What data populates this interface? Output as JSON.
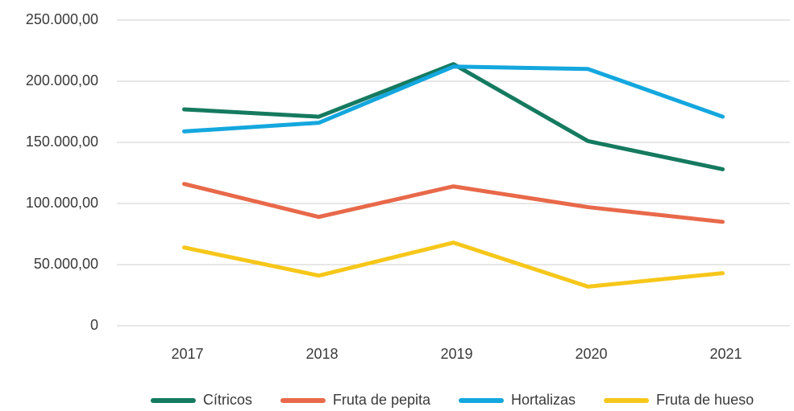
{
  "chart_data": {
    "type": "line",
    "categories": [
      "2017",
      "2018",
      "2019",
      "2020",
      "2021"
    ],
    "series": [
      {
        "name": "Cítricos",
        "color": "#157a5f",
        "values": [
          177000,
          171000,
          214000,
          151000,
          128000
        ]
      },
      {
        "name": "Fruta de pepita",
        "color": "#e8694a",
        "values": [
          116000,
          89000,
          114000,
          97000,
          85000
        ]
      },
      {
        "name": "Hortalizas",
        "color": "#14a7de",
        "values": [
          159000,
          166000,
          212000,
          210000,
          171000
        ]
      },
      {
        "name": "Fruta de hueso",
        "color": "#f6c71a",
        "values": [
          64000,
          41000,
          68000,
          32000,
          43000
        ]
      }
    ],
    "ylim": [
      0,
      250000
    ],
    "yticks": [
      0,
      {
        "value": 50000,
        "label": "50.000,00"
      },
      {
        "value": 100000,
        "label": "100.000,00"
      },
      {
        "value": 150000,
        "label": "150.000,00"
      },
      {
        "value": 200000,
        "label": "200.000,00"
      },
      {
        "value": 250000,
        "label": "250.000,00"
      }
    ],
    "grid": true,
    "legend": "bottom"
  }
}
